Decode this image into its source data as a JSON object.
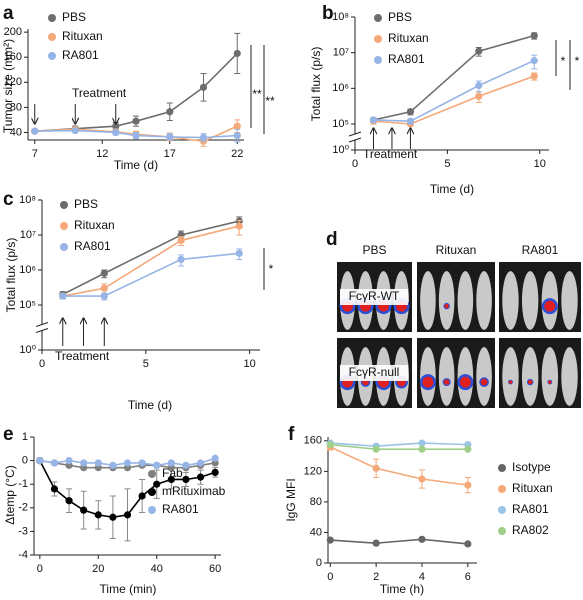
{
  "chart_data": [
    {
      "type": "line",
      "panel": "a",
      "xlabel": "Time (d)",
      "ylabel": "Tumor size (mm²)",
      "x": [
        7,
        10,
        13,
        14.5,
        17,
        19.5,
        22
      ],
      "xlim": [
        6.5,
        22.5
      ],
      "xticks": [
        7,
        12,
        17,
        22
      ],
      "ylim": [
        28,
        205
      ],
      "yticks": [
        40,
        80,
        120,
        160,
        200
      ],
      "legend": "upper left",
      "series": [
        {
          "name": "PBS",
          "color": "#6d6d6d",
          "values": [
            42,
            46,
            50,
            58,
            73,
            112,
            166
          ],
          "errors": [
            2,
            4,
            6,
            8,
            14,
            22,
            32
          ]
        },
        {
          "name": "Rituxan",
          "color": "#f5a878",
          "values": [
            42,
            45,
            41,
            37,
            33,
            26,
            50
          ],
          "errors": [
            2,
            3,
            4,
            5,
            6,
            8,
            10
          ]
        },
        {
          "name": "RA801",
          "color": "#96b4e6",
          "values": [
            42,
            43,
            40,
            35,
            33,
            32,
            35
          ],
          "errors": [
            2,
            3,
            4,
            5,
            5,
            6,
            10
          ]
        }
      ],
      "annotations": [
        {
          "text": "Treatment",
          "x": [
            7,
            10,
            13
          ]
        },
        {
          "text": "**"
        },
        {
          "text": "**"
        }
      ]
    },
    {
      "type": "line",
      "panel": "b",
      "xlabel": "Time (d)",
      "ylabel": "Total flux (p/s)",
      "x": [
        1,
        3,
        6.7,
        9.7
      ],
      "xlim": [
        0,
        10.5
      ],
      "xticks": [
        0,
        5,
        10
      ],
      "log_y": true,
      "ylim": [
        1,
        100000000
      ],
      "y_break": [
        1,
        100000
      ],
      "yticks": [
        {
          "value": 1,
          "label": "10⁰"
        },
        {
          "value": 100000,
          "label": "10⁵"
        },
        {
          "value": 1000000,
          "label": "10⁶"
        },
        {
          "value": 10000000,
          "label": "10⁷"
        },
        {
          "value": 100000000,
          "label": "10⁸"
        }
      ],
      "legend": "upper left",
      "series": [
        {
          "name": "PBS",
          "color": "#6d6d6d",
          "values": [
            130000,
            220000,
            11000000,
            30000000
          ],
          "errors": [
            20000,
            40000,
            3000000,
            6000000
          ]
        },
        {
          "name": "Rituxan",
          "color": "#f5a878",
          "values": [
            120000,
            100000,
            600000,
            2200000
          ],
          "errors": [
            20000,
            20000,
            200000,
            500000
          ]
        },
        {
          "name": "RA801",
          "color": "#96b4e6",
          "values": [
            130000,
            120000,
            1200000,
            6000000
          ],
          "errors": [
            20000,
            20000,
            400000,
            2500000
          ]
        }
      ],
      "annotations": [
        {
          "text": "Treatment",
          "x": [
            1,
            2,
            3
          ]
        },
        {
          "text": "*"
        },
        {
          "text": "*"
        }
      ]
    },
    {
      "type": "line",
      "panel": "c",
      "xlabel": "Time (d)",
      "ylabel": "Total flux (p/s)",
      "x": [
        1,
        3,
        6.7,
        9.5
      ],
      "xlim": [
        0,
        10.5
      ],
      "xticks": [
        0,
        5,
        10
      ],
      "log_y": true,
      "ylim": [
        1,
        100000000
      ],
      "y_break": [
        1,
        100000
      ],
      "yticks": [
        {
          "value": 1,
          "label": "10⁰"
        },
        {
          "value": 100000,
          "label": "10⁵"
        },
        {
          "value": 1000000,
          "label": "10⁶"
        },
        {
          "value": 10000000,
          "label": "10⁷"
        },
        {
          "value": 100000000,
          "label": "10⁸"
        }
      ],
      "legend": "upper left",
      "series": [
        {
          "name": "PBS",
          "color": "#6d6d6d",
          "values": [
            200000,
            800000,
            10000000,
            25000000
          ],
          "errors": [
            40000,
            200000,
            3000000,
            8000000
          ]
        },
        {
          "name": "Rituxan",
          "color": "#f5a878",
          "values": [
            180000,
            300000,
            7000000,
            18000000
          ],
          "errors": [
            30000,
            100000,
            2000000,
            8000000
          ]
        },
        {
          "name": "RA801",
          "color": "#96b4e6",
          "values": [
            180000,
            180000,
            2000000,
            3000000
          ],
          "errors": [
            30000,
            40000,
            700000,
            1000000
          ]
        }
      ],
      "annotations": [
        {
          "text": "Treatment",
          "x": [
            1,
            2,
            3
          ]
        },
        {
          "text": "*"
        }
      ]
    },
    {
      "type": "line",
      "panel": "e",
      "xlabel": "Time (min)",
      "ylabel": "Δtemp (°C)",
      "x": [
        0,
        5,
        10,
        15,
        20,
        25,
        30,
        35,
        40,
        45,
        50,
        55,
        60
      ],
      "xlim": [
        -2,
        62
      ],
      "xticks": [
        0,
        20,
        40,
        60
      ],
      "ylim": [
        -4,
        1
      ],
      "yticks": [
        1,
        0,
        -1,
        -2,
        -3,
        -4
      ],
      "legend": "lower right",
      "series": [
        {
          "name": "Fab",
          "color": "#808080",
          "values": [
            0,
            -0.1,
            -0.2,
            -0.3,
            -0.3,
            -0.3,
            -0.3,
            -0.2,
            -0.2,
            -0.3,
            -0.3,
            -0.2,
            -0.1
          ]
        },
        {
          "name": "mRituximab",
          "color": "#000000",
          "values": [
            0,
            -1.2,
            -1.7,
            -2.1,
            -2.3,
            -2.4,
            -2.3,
            -1.5,
            -1.0,
            -0.8,
            -0.8,
            -0.7,
            -0.5
          ],
          "errors": [
            0.1,
            0.3,
            0.5,
            0.8,
            0.6,
            0.9,
            1.1,
            0.7,
            0.6,
            0.4,
            0.3,
            0.3,
            0.2
          ]
        },
        {
          "name": "RA801",
          "color": "#96b4e6",
          "values": [
            0,
            -0.1,
            0,
            -0.1,
            -0.1,
            -0.2,
            -0.1,
            -0.1,
            -0.2,
            -0.1,
            -0.2,
            -0.1,
            0.1
          ]
        }
      ]
    },
    {
      "type": "line",
      "panel": "f",
      "xlabel": "Time (h)",
      "ylabel": "IgG MFI",
      "x": [
        0,
        2,
        4,
        6
      ],
      "xlim": [
        -0.1,
        6.4
      ],
      "xticks": [
        0,
        2,
        4,
        6
      ],
      "ylim": [
        0,
        165
      ],
      "yticks": [
        0,
        40,
        80,
        120,
        160
      ],
      "legend": "right",
      "series": [
        {
          "name": "Isotype",
          "color": "#666666",
          "values": [
            30,
            26,
            31,
            25
          ]
        },
        {
          "name": "Rituxan",
          "color": "#f5a878",
          "values": [
            152,
            124,
            110,
            102
          ],
          "errors": [
            4,
            12,
            12,
            10
          ]
        },
        {
          "name": "RA801",
          "color": "#9bc4e6",
          "values": [
            157,
            153,
            157,
            155
          ]
        },
        {
          "name": "RA802",
          "color": "#9fd08a",
          "values": [
            155,
            149,
            149,
            149
          ]
        }
      ]
    }
  ],
  "panel_d": {
    "panel": "d",
    "columns": [
      "PBS",
      "Rituxan",
      "RA801"
    ],
    "rows": [
      "FcγR-WT",
      "FcγR-null"
    ]
  }
}
